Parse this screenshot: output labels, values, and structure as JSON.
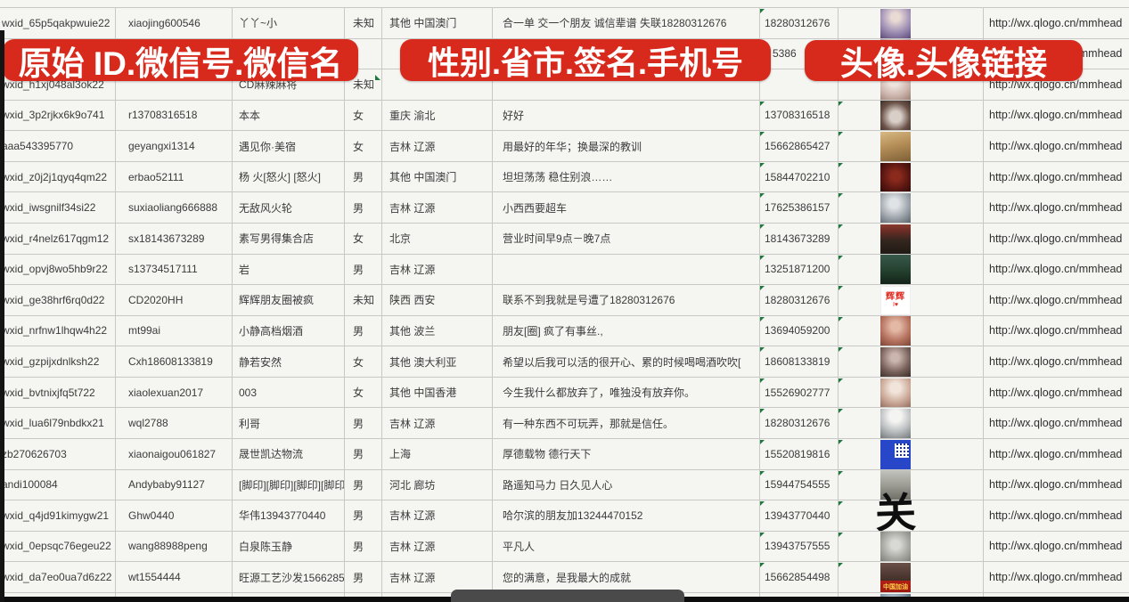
{
  "banners": {
    "left": "原始 ID.微信号.微信名",
    "mid": "性别.省市.签名.手机号",
    "right": "头像.头像链接"
  },
  "colors": {
    "banner_red": "#d8291d",
    "error_triangle_green": "#1e7a3c",
    "grid_line": "#c8c8c6",
    "cell_text": "#3b3b3b"
  },
  "table": {
    "rows": [
      {
        "wxid": "wxid_65p5qakpwuie22",
        "wechat_id": "xiaojing600546",
        "nickname": "丫丫~小",
        "gender": "未知",
        "region": "其他 中国澳门",
        "signature": "合一单 交一个朋友 诚信辈谱 失联18280312676",
        "phone": "18280312676",
        "avatar_style": "av-w1",
        "url": "http://wx.qlogo.cn/mmhead"
      },
      {
        "wxid": "",
        "wechat_id": "",
        "nickname": "",
        "gender": "",
        "region": "",
        "signature": "",
        "phone": "5386",
        "phone_partial": true,
        "avatar_style": "av-w2",
        "url": "http://wx.qlogo.cn/mmhead"
      },
      {
        "wxid": "wxid_h1xj048al3ok22",
        "wechat_id": "",
        "nickname": "CD麻辣麻将",
        "gender": "未知",
        "region": "",
        "signature": "",
        "phone": "",
        "avatar_style": "av-w3",
        "url": "http://wx.qlogo.cn/mmhead"
      },
      {
        "wxid": "wxid_3p2rjkx6k9o741",
        "wechat_id": "r13708316518",
        "nickname": "本本",
        "gender": "女",
        "region": "重庆 渝北",
        "signature": "好好",
        "phone": "13708316518",
        "avatar_style": "av-w4",
        "url": "http://wx.qlogo.cn/mmhead"
      },
      {
        "wxid": "aaa543395770",
        "wechat_id": "geyangxi1314",
        "nickname": "遇见你·美宿",
        "gender": "女",
        "region": "吉林 辽源",
        "signature": "用最好的年华；换最深的教训",
        "phone": "15662865427",
        "avatar_style": "av-trees",
        "url": "http://wx.qlogo.cn/mmhead"
      },
      {
        "wxid": "wxid_z0j2j1qyq4qm22",
        "wechat_id": "erbao52111",
        "nickname": "杨 火[怒火] [怒火]",
        "gender": "男",
        "region": "其他 中国澳门",
        "signature": "坦坦荡荡 稳住别浪……",
        "phone": "15844702210",
        "avatar_style": "av-redtoys",
        "url": "http://wx.qlogo.cn/mmhead"
      },
      {
        "wxid": "wxid_iwsgnilf34si22",
        "wechat_id": "suxiaoliang666888",
        "nickname": "无敌风火轮",
        "gender": "男",
        "region": "吉林 辽源",
        "signature": "小西西要超车",
        "phone": "17625386157",
        "avatar_style": "av-carman",
        "url": "http://wx.qlogo.cn/mmhead"
      },
      {
        "wxid": "wxid_r4nelz617qgm12",
        "wechat_id": "sx18143673289",
        "nickname": "素写男得集合店",
        "gender": "女",
        "region": "北京",
        "signature": "营业时间早9点－晚7点",
        "phone": "18143673289",
        "avatar_style": "av-store",
        "url": "http://wx.qlogo.cn/mmhead"
      },
      {
        "wxid": "wxid_opvj8wo5hb9r22",
        "wechat_id": "s13734517111",
        "nickname": "岩",
        "gender": "男",
        "region": "吉林 辽源",
        "signature": "",
        "phone": "13251871200",
        "avatar_style": "av-poster",
        "url": "http://wx.qlogo.cn/mmhead"
      },
      {
        "wxid": "wxid_ge38hrf6rq0d22",
        "wechat_id": "CD2020HH",
        "nickname": "辉辉朋友圈被疯",
        "gender": "未知",
        "region": "陕西 西安",
        "signature": "联系不到我就是号遭了18280312676",
        "phone": "18280312676",
        "avatar_style": "av-huihui",
        "avatar_text": "辉辉",
        "avatar_subtext": "I♥",
        "url": "http://wx.qlogo.cn/mmhead"
      },
      {
        "wxid": "wxid_nrfnw1lhqw4h22",
        "wechat_id": "mt99ai",
        "nickname": "小静高档烟酒",
        "gender": "男",
        "region": "其他 波兰",
        "signature": "朋友[圈] 疯了有事丝.,",
        "phone": "13694059200",
        "avatar_style": "av-w5",
        "url": "http://wx.qlogo.cn/mmhead"
      },
      {
        "wxid": "wxid_gzpijxdnlksh22",
        "wechat_id": "Cxh18608133819",
        "nickname": "静若安然",
        "gender": "女",
        "region": "其他 澳大利亚",
        "signature": "希望以后我可以活的很开心、累的时候喝喝酒吹吹[",
        "phone": "18608133819",
        "avatar_style": "av-w6",
        "url": "http://wx.qlogo.cn/mmhead"
      },
      {
        "wxid": "wxid_bvtnixjfq5t722",
        "wechat_id": "xiaolexuan2017",
        "nickname": "003",
        "gender": "女",
        "region": "其他 中国香港",
        "signature": "今生我什么都放弃了，唯独没有放弃你。",
        "phone": "15526902777",
        "avatar_style": "av-w7",
        "url": "http://wx.qlogo.cn/mmhead"
      },
      {
        "wxid": "wxid_lua6l79nbdkx21",
        "wechat_id": "wql2788",
        "nickname": "利哥",
        "gender": "男",
        "region": "吉林 辽源",
        "signature": "有一种东西不可玩弄，那就是信任。",
        "phone": "18280312676",
        "avatar_style": "av-cap",
        "url": "http://wx.qlogo.cn/mmhead"
      },
      {
        "wxid": "zb270626703",
        "wechat_id": "xiaonaigou061827",
        "nickname": "晟世凯达物流",
        "gender": "男",
        "region": "上海",
        "signature": "厚德载物 德行天下",
        "phone": "15520819816",
        "avatar_style": "av-qr",
        "url": "http://wx.qlogo.cn/mmhead"
      },
      {
        "wxid": "andi100084",
        "wechat_id": "Andybaby91127",
        "nickname": "[脚印][脚印][脚印][脚印",
        "gender": "男",
        "region": "河北 廊坊",
        "signature": "路遥知马力 日久见人心",
        "phone": "15944754555",
        "avatar_style": "av-people",
        "url": "http://wx.qlogo.cn/mmhead"
      },
      {
        "wxid": "wxid_q4jd91kimygw21",
        "wechat_id": "Ghw0440",
        "nickname": "华伟13943770440",
        "gender": "男",
        "region": "吉林 辽源",
        "signature": "哈尔滨的朋友加13244470152",
        "phone": "13943770440",
        "avatar_style": "av-guan",
        "avatar_text": "关",
        "url": "http://wx.qlogo.cn/mmhead"
      },
      {
        "wxid": "wxid_0epsqc76egeu22",
        "wechat_id": "wang88988peng",
        "nickname": "白泉陈玉静",
        "gender": "男",
        "region": "吉林 辽源",
        "signature": "平凡人",
        "phone": "13943757555",
        "avatar_style": "av-walk",
        "url": "http://wx.qlogo.cn/mmhead"
      },
      {
        "wxid": "wxid_da7eo0ua7d6z22",
        "wechat_id": "wt1554444",
        "nickname": "旺源工艺沙发15662854",
        "gender": "男",
        "region": "吉林 辽源",
        "signature": "您的满意，是我最大的成就",
        "phone": "15662854498",
        "avatar_style": "av-china",
        "avatar_subtext": "中国加油",
        "url": "http://wx.qlogo.cn/mmhead"
      },
      {
        "wxid": "",
        "wechat_id": "",
        "nickname": "",
        "gender": "",
        "region": "",
        "signature": "",
        "phone": "",
        "avatar_style": "av-suit",
        "url": ""
      }
    ]
  }
}
